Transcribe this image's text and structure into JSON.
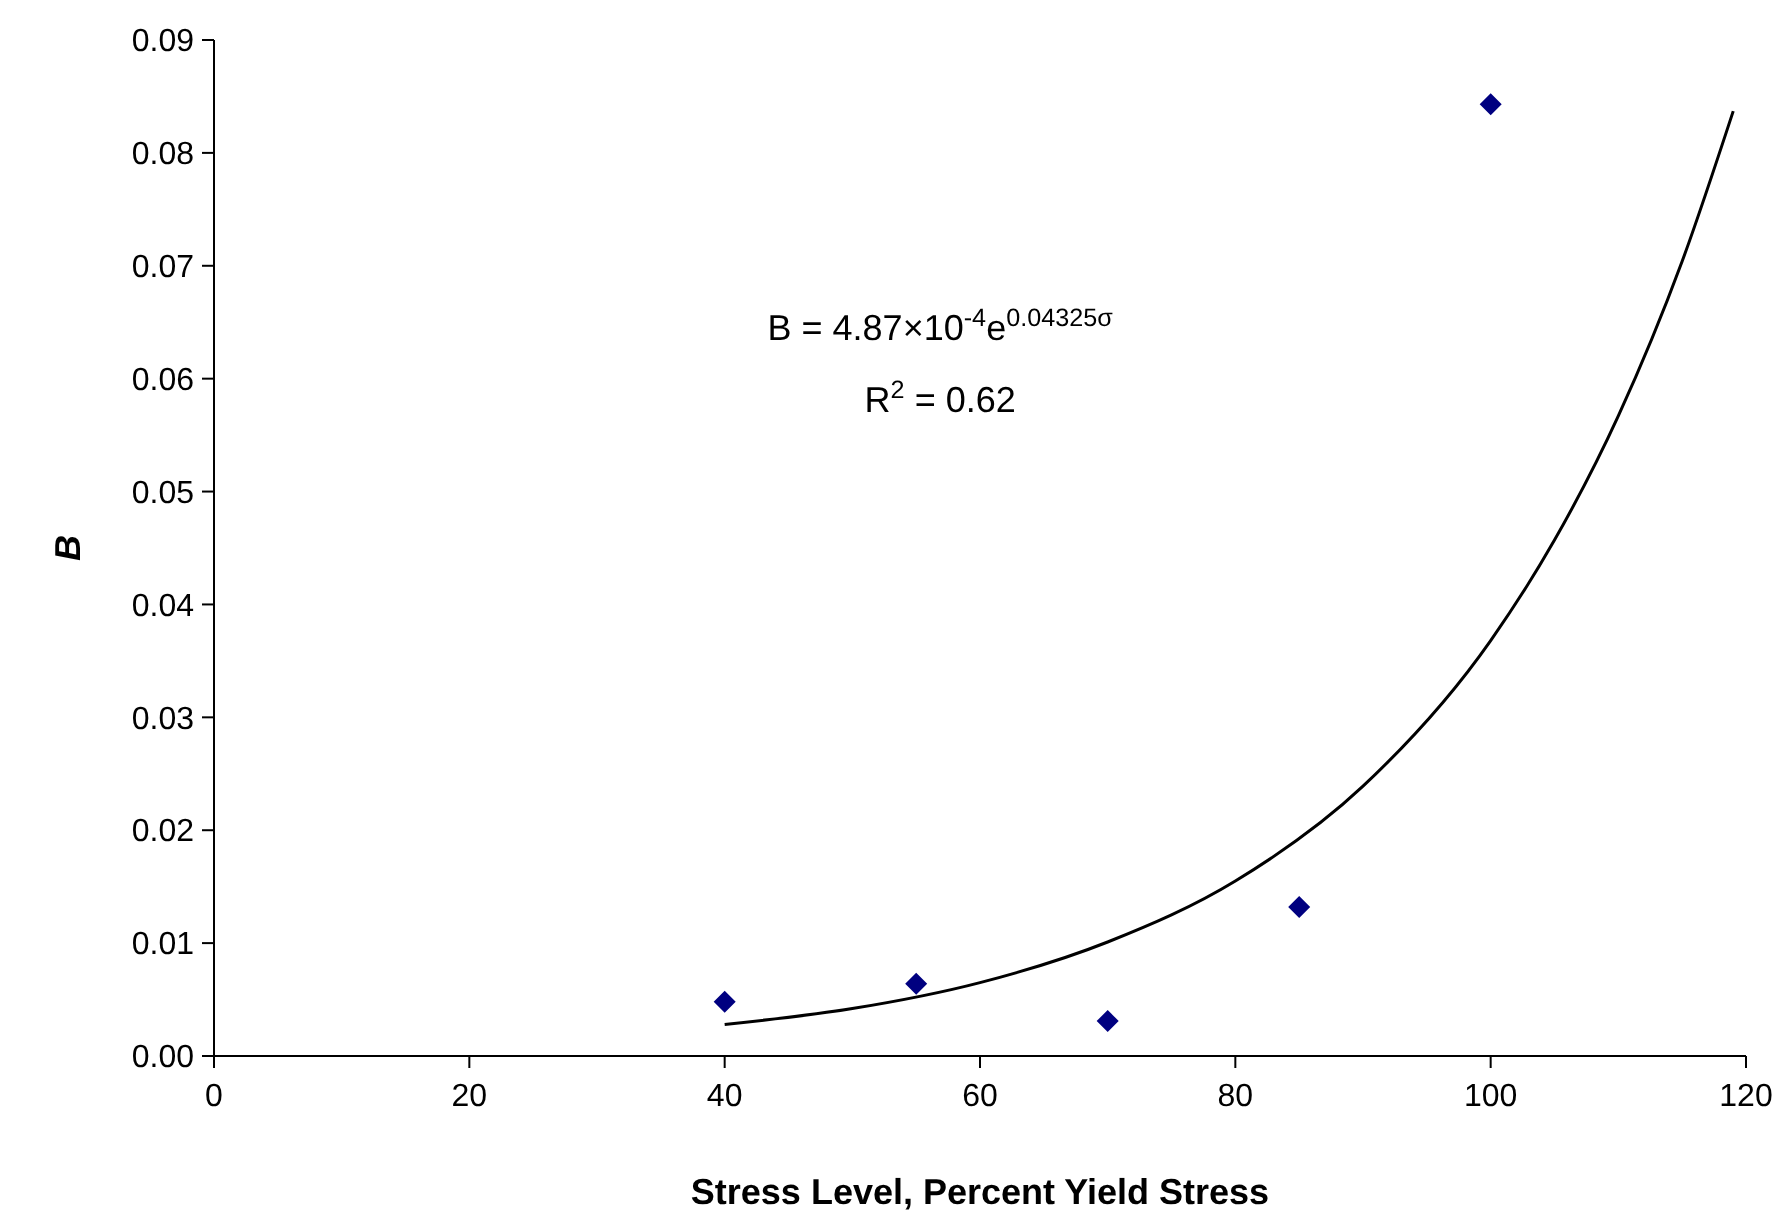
{
  "chart_data": {
    "type": "scatter",
    "xlabel": "Stress Level, Percent Yield Stress",
    "ylabel": "B",
    "xlim": [
      0,
      120
    ],
    "xticks": [
      0,
      20,
      40,
      60,
      80,
      100,
      120
    ],
    "ylim": [
      0,
      0.09
    ],
    "yticks": [
      {
        "value": 0,
        "label": "0.00"
      },
      {
        "value": 0.01,
        "label": "0.01"
      },
      {
        "value": 0.02,
        "label": "0.02"
      },
      {
        "value": 0.03,
        "label": "0.03"
      },
      {
        "value": 0.04,
        "label": "0.04"
      },
      {
        "value": 0.05,
        "label": "0.05"
      },
      {
        "value": 0.06,
        "label": "0.06"
      },
      {
        "value": 0.07,
        "label": "0.07"
      },
      {
        "value": 0.08,
        "label": "0.08"
      },
      {
        "value": 0.09,
        "label": "0.09"
      }
    ],
    "marker": "diamond",
    "grid": false,
    "series": [
      {
        "color": "#000080",
        "x": [
          40,
          55,
          70,
          85,
          100
        ],
        "values": [
          0.0048,
          0.0064,
          0.0031,
          0.0132,
          0.0843
        ]
      },
      {
        "type": "line",
        "marker": "none",
        "color": "#000000",
        "x": [
          40,
          50,
          60,
          70,
          80,
          90,
          100,
          105,
          110,
          115,
          119
        ],
        "values": [
          0.0028,
          0.0042,
          0.0065,
          0.0101,
          0.0155,
          0.0239,
          0.0368,
          0.0457,
          0.0567,
          0.0704,
          0.0837
        ]
      }
    ],
    "annotations": [
      "B = 4.87×10$^{-4}$e$^{0.04325σ}$",
      "R$^{2}$ = 0.62"
    ]
  }
}
